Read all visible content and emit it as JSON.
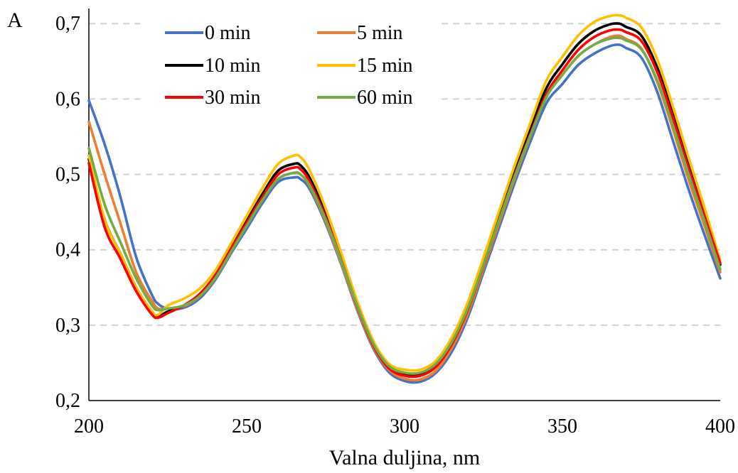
{
  "chart_data": {
    "type": "line",
    "title": "",
    "xlabel": "Valna duljina, nm",
    "ylabel": "A",
    "xlim": [
      200,
      400
    ],
    "ylim": [
      0.2,
      0.72
    ],
    "x_ticks": [
      200,
      250,
      300,
      350,
      400
    ],
    "y_ticks": [
      0.2,
      0.3,
      0.4,
      0.5,
      0.6,
      0.7
    ],
    "y_tick_labels": [
      "0,2",
      "0,3",
      "0,4",
      "0,5",
      "0,6",
      "0,7"
    ],
    "x_tick_labels": [
      "200",
      "250",
      "300",
      "350",
      "400"
    ],
    "grid": "horizontal dashed",
    "legend_position": "top-left",
    "x": [
      200,
      205,
      210,
      215,
      220,
      222,
      225,
      230,
      235,
      240,
      245,
      250,
      255,
      260,
      265,
      267,
      270,
      275,
      280,
      285,
      290,
      295,
      300,
      305,
      310,
      315,
      320,
      325,
      330,
      335,
      340,
      345,
      350,
      355,
      360,
      365,
      368,
      370,
      375,
      380,
      385,
      390,
      395,
      400
    ],
    "series": [
      {
        "name": "0 min",
        "color": "#4472C4",
        "values": [
          0.598,
          0.54,
          0.47,
          0.39,
          0.34,
          0.328,
          0.322,
          0.323,
          0.335,
          0.36,
          0.395,
          0.428,
          0.462,
          0.49,
          0.496,
          0.494,
          0.48,
          0.435,
          0.38,
          0.32,
          0.27,
          0.238,
          0.226,
          0.225,
          0.237,
          0.265,
          0.31,
          0.37,
          0.43,
          0.49,
          0.545,
          0.595,
          0.62,
          0.645,
          0.66,
          0.67,
          0.672,
          0.668,
          0.655,
          0.61,
          0.545,
          0.48,
          0.42,
          0.362
        ]
      },
      {
        "name": "5 min",
        "color": "#ED7D31",
        "values": [
          0.57,
          0.5,
          0.435,
          0.37,
          0.332,
          0.322,
          0.322,
          0.325,
          0.338,
          0.362,
          0.398,
          0.432,
          0.466,
          0.494,
          0.502,
          0.5,
          0.484,
          0.438,
          0.382,
          0.322,
          0.272,
          0.241,
          0.229,
          0.228,
          0.24,
          0.27,
          0.315,
          0.375,
          0.436,
          0.496,
          0.552,
          0.603,
          0.632,
          0.657,
          0.672,
          0.682,
          0.684,
          0.68,
          0.667,
          0.623,
          0.56,
          0.493,
          0.432,
          0.37
        ]
      },
      {
        "name": "10 min",
        "color": "#000000",
        "values": [
          0.52,
          0.44,
          0.395,
          0.35,
          0.318,
          0.312,
          0.318,
          0.326,
          0.34,
          0.366,
          0.402,
          0.438,
          0.474,
          0.505,
          0.514,
          0.512,
          0.495,
          0.448,
          0.39,
          0.328,
          0.276,
          0.244,
          0.234,
          0.234,
          0.246,
          0.276,
          0.322,
          0.382,
          0.444,
          0.505,
          0.562,
          0.615,
          0.646,
          0.673,
          0.69,
          0.699,
          0.7,
          0.696,
          0.684,
          0.642,
          0.58,
          0.512,
          0.448,
          0.38
        ]
      },
      {
        "name": "15 min",
        "color": "#FFC000",
        "values": [
          0.525,
          0.44,
          0.395,
          0.35,
          0.318,
          0.314,
          0.326,
          0.335,
          0.348,
          0.372,
          0.408,
          0.445,
          0.482,
          0.514,
          0.525,
          0.523,
          0.505,
          0.455,
          0.395,
          0.332,
          0.28,
          0.249,
          0.241,
          0.241,
          0.253,
          0.284,
          0.33,
          0.39,
          0.452,
          0.513,
          0.57,
          0.625,
          0.656,
          0.684,
          0.702,
          0.71,
          0.711,
          0.708,
          0.695,
          0.653,
          0.59,
          0.522,
          0.456,
          0.386
        ]
      },
      {
        "name": "30 min",
        "color": "#FF0000",
        "values": [
          0.515,
          0.43,
          0.388,
          0.345,
          0.314,
          0.31,
          0.316,
          0.326,
          0.341,
          0.366,
          0.401,
          0.436,
          0.47,
          0.5,
          0.509,
          0.507,
          0.49,
          0.443,
          0.386,
          0.325,
          0.274,
          0.243,
          0.233,
          0.233,
          0.245,
          0.275,
          0.32,
          0.379,
          0.44,
          0.5,
          0.555,
          0.607,
          0.638,
          0.665,
          0.682,
          0.691,
          0.692,
          0.689,
          0.677,
          0.636,
          0.575,
          0.508,
          0.445,
          0.382
        ]
      },
      {
        "name": "60 min",
        "color": "#70AD47",
        "values": [
          0.535,
          0.46,
          0.41,
          0.362,
          0.326,
          0.32,
          0.322,
          0.326,
          0.338,
          0.362,
          0.397,
          0.432,
          0.466,
          0.494,
          0.502,
          0.5,
          0.485,
          0.44,
          0.385,
          0.326,
          0.276,
          0.246,
          0.237,
          0.237,
          0.249,
          0.278,
          0.322,
          0.38,
          0.44,
          0.499,
          0.553,
          0.603,
          0.632,
          0.657,
          0.672,
          0.68,
          0.681,
          0.678,
          0.666,
          0.625,
          0.565,
          0.5,
          0.438,
          0.374
        ]
      }
    ]
  }
}
